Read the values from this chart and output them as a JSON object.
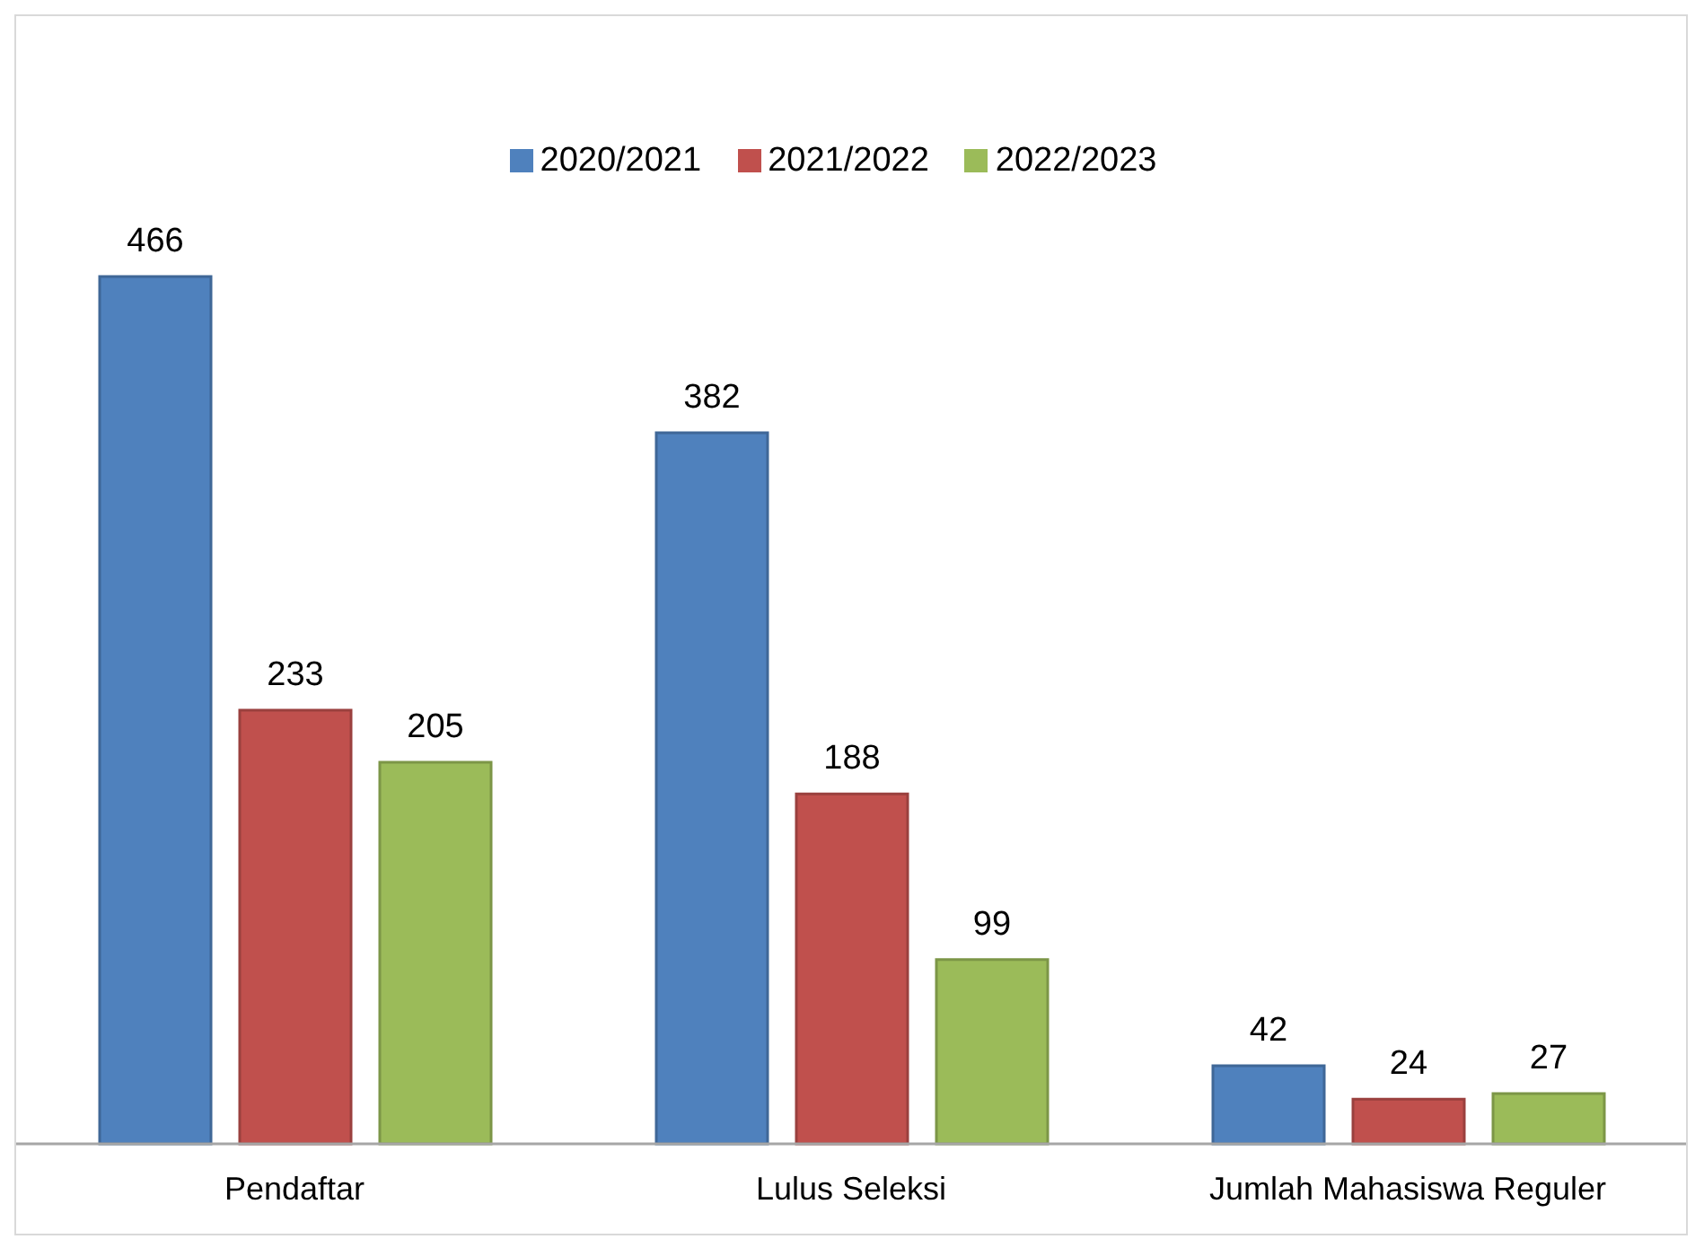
{
  "chart_data": {
    "type": "bar",
    "categories": [
      "Pendaftar",
      "Lulus Seleksi",
      "Jumlah Mahasiswa Reguler"
    ],
    "series": [
      {
        "name": "2020/2021",
        "color": "#4f81bd",
        "values": [
          466,
          382,
          42
        ]
      },
      {
        "name": "2021/2022",
        "color": "#c0504d",
        "values": [
          233,
          188,
          24
        ]
      },
      {
        "name": "2022/2023",
        "color": "#9bbb59",
        "values": [
          205,
          99,
          27
        ]
      }
    ],
    "data_labels": true,
    "legend": "top",
    "grid": false
  }
}
